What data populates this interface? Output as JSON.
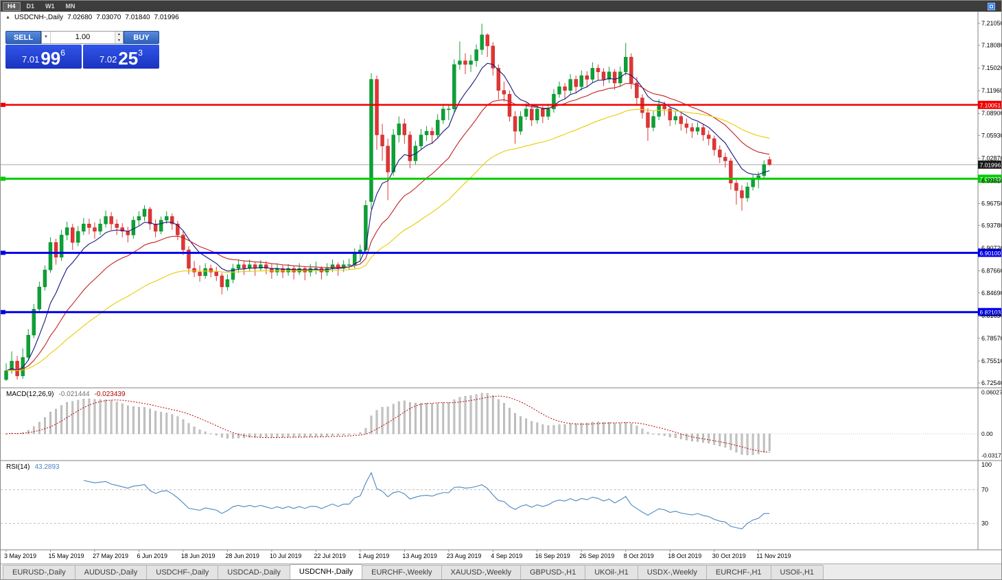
{
  "toolbar": {
    "timeframes": [
      {
        "label": "H4",
        "active": true
      },
      {
        "label": "D1",
        "active": false
      },
      {
        "label": "W1",
        "active": false
      },
      {
        "label": "MN",
        "active": false
      }
    ]
  },
  "icons": {
    "collapse": "▲",
    "dropdown": "▼",
    "up": "▲",
    "down": "▼"
  },
  "chart_header": {
    "symbol": "USDCNH-,Daily",
    "open": "7.02680",
    "high": "7.03070",
    "low": "7.01840",
    "close": "7.01996"
  },
  "trade_panel": {
    "sell_label": "SELL",
    "buy_label": "BUY",
    "volume": "1.00",
    "sell_price": {
      "prefix": "7.01",
      "big": "99",
      "sup": "6"
    },
    "buy_price": {
      "prefix": "7.02",
      "big": "25",
      "sup": "3"
    }
  },
  "indicators": {
    "macd_label": "MACD(12,26,9)",
    "macd_value": "-0.021444",
    "macd_signal": "-0.023439",
    "rsi_label": "RSI(14)",
    "rsi_value": "43.2893"
  },
  "price_scale": {
    "labels": [
      "7.21050",
      "7.18080",
      "7.15020",
      "7.11960",
      "7.08900",
      "7.05930",
      "7.02870",
      "6.99810",
      "6.96750",
      "6.93780",
      "6.90720",
      "6.87660",
      "6.84690",
      "6.81630",
      "6.78570",
      "6.75510",
      "6.72540"
    ],
    "current_price": "7.01996",
    "current_tag_color": "#1a1a1a"
  },
  "macd_scale": [
    "0.060273",
    "0.00",
    "-0.031723"
  ],
  "rsi_scale": [
    "100",
    "70",
    "30"
  ],
  "hlines": [
    {
      "price": "7.10051",
      "value": 7.10051,
      "color": "#f00000",
      "width": 2.5
    },
    {
      "price": "7.00089",
      "value": 7.00089,
      "color": "#00ce00",
      "width": 3
    },
    {
      "price": "6.90100",
      "value": 6.901,
      "color": "#0000e6",
      "width": 3
    },
    {
      "price": "6.82103",
      "value": 6.82103,
      "color": "#0000e6",
      "width": 3
    }
  ],
  "tabs": [
    {
      "label": "EURUSD-,Daily",
      "active": false
    },
    {
      "label": "AUDUSD-,Daily",
      "active": false
    },
    {
      "label": "USDCHF-,Daily",
      "active": false
    },
    {
      "label": "USDCAD-,Daily",
      "active": false
    },
    {
      "label": "USDCNH-,Daily",
      "active": true
    },
    {
      "label": "EURCHF-,Weekly",
      "active": false
    },
    {
      "label": "XAUUSD-,Weekly",
      "active": false
    },
    {
      "label": "GBPUSD-,H1",
      "active": false
    },
    {
      "label": "UKOil-,H1",
      "active": false
    },
    {
      "label": "USDX-,Weekly",
      "active": false
    },
    {
      "label": "EURCHF-,H1",
      "active": false
    },
    {
      "label": "USOil-,H1",
      "active": false
    }
  ],
  "chart_data": {
    "type": "candlestick",
    "symbol": "USDCNH",
    "timeframe": "Daily",
    "title": "USDCNH-,Daily",
    "ylim": [
      6.7254,
      7.2105
    ],
    "up_color": "#0ca135",
    "down_color": "#e03535",
    "up_stroke": "#007a26",
    "down_stroke": "#b02020",
    "current_line_color": "#a8a8a8",
    "x_labels": [
      "3 May 2019",
      "15 May 2019",
      "27 May 2019",
      "6 Jun 2019",
      "18 Jun 2019",
      "28 Jun 2019",
      "10 Jul 2019",
      "22 Jul 2019",
      "1 Aug 2019",
      "13 Aug 2019",
      "23 Aug 2019",
      "4 Sep 2019",
      "16 Sep 2019",
      "26 Sep 2019",
      "8 Oct 2019",
      "18 Oct 2019",
      "30 Oct 2019",
      "11 Nov 2019"
    ],
    "x_label_indices": [
      0,
      8,
      16,
      24,
      32,
      40,
      48,
      56,
      64,
      72,
      80,
      88,
      96,
      104,
      112,
      120,
      128,
      136
    ],
    "overlays": [
      {
        "name": "ma-fast-line",
        "period": 8,
        "color": "#16167f"
      },
      {
        "name": "ma-mid-line",
        "period": 20,
        "color": "#c41e1e"
      },
      {
        "name": "ma-slow-line",
        "period": 45,
        "color": "#e8cc00"
      }
    ],
    "macd": {
      "fast": 12,
      "slow": 26,
      "signal": 9,
      "range": [
        -0.035,
        0.065
      ],
      "bar_color": "#c4c4c4",
      "bar_stroke": "#9a9a9a",
      "signal_color": "#c00000"
    },
    "rsi": {
      "period": 14,
      "levels": [
        70,
        30
      ],
      "range": [
        0,
        100
      ],
      "color": "#4a86c0",
      "level_color": "#b8b8b8"
    },
    "candles": [
      [
        6.73,
        6.752,
        6.728,
        6.742
      ],
      [
        6.742,
        6.768,
        6.738,
        6.755
      ],
      [
        6.755,
        6.762,
        6.73,
        6.735
      ],
      [
        6.735,
        6.772,
        6.731,
        6.76
      ],
      [
        6.76,
        6.798,
        6.756,
        6.79
      ],
      [
        6.79,
        6.832,
        6.786,
        6.825
      ],
      [
        6.825,
        6.862,
        6.82,
        6.855
      ],
      [
        6.855,
        6.884,
        6.85,
        6.878
      ],
      [
        6.878,
        6.922,
        6.874,
        6.915
      ],
      [
        6.915,
        6.92,
        6.885,
        6.895
      ],
      [
        6.895,
        6.932,
        6.89,
        6.925
      ],
      [
        6.925,
        6.943,
        6.918,
        6.935
      ],
      [
        6.935,
        6.94,
        6.905,
        6.915
      ],
      [
        6.915,
        6.937,
        6.91,
        6.93
      ],
      [
        6.93,
        6.948,
        6.925,
        6.94
      ],
      [
        6.94,
        6.947,
        6.926,
        6.935
      ],
      [
        6.935,
        6.942,
        6.92,
        6.93
      ],
      [
        6.93,
        6.947,
        6.925,
        6.94
      ],
      [
        6.94,
        6.958,
        6.935,
        6.95
      ],
      [
        6.95,
        6.956,
        6.932,
        6.94
      ],
      [
        6.94,
        6.946,
        6.925,
        6.935
      ],
      [
        6.935,
        6.941,
        6.922,
        6.93
      ],
      [
        6.93,
        6.936,
        6.915,
        6.925
      ],
      [
        6.925,
        6.95,
        6.92,
        6.945
      ],
      [
        6.945,
        6.957,
        6.938,
        6.95
      ],
      [
        6.95,
        6.965,
        6.944,
        6.96
      ],
      [
        6.96,
        6.963,
        6.932,
        6.94
      ],
      [
        6.94,
        6.946,
        6.922,
        6.93
      ],
      [
        6.93,
        6.95,
        6.926,
        6.945
      ],
      [
        6.945,
        6.957,
        6.94,
        6.95
      ],
      [
        6.95,
        6.954,
        6.932,
        6.94
      ],
      [
        6.94,
        6.944,
        6.918,
        6.925
      ],
      [
        6.925,
        6.93,
        6.898,
        6.905
      ],
      [
        6.905,
        6.91,
        6.872,
        6.88
      ],
      [
        6.88,
        6.89,
        6.868,
        6.875
      ],
      [
        6.875,
        6.884,
        6.862,
        6.87
      ],
      [
        6.87,
        6.887,
        6.866,
        6.88
      ],
      [
        6.88,
        6.885,
        6.868,
        6.875
      ],
      [
        6.875,
        6.882,
        6.863,
        6.87
      ],
      [
        6.87,
        6.874,
        6.845,
        6.855
      ],
      [
        6.855,
        6.872,
        6.85,
        6.865
      ],
      [
        6.865,
        6.886,
        6.86,
        6.88
      ],
      [
        6.88,
        6.892,
        6.874,
        6.885
      ],
      [
        6.885,
        6.89,
        6.871,
        6.88
      ],
      [
        6.88,
        6.892,
        6.876,
        6.885
      ],
      [
        6.885,
        6.889,
        6.87,
        6.88
      ],
      [
        6.88,
        6.891,
        6.876,
        6.885
      ],
      [
        6.885,
        6.89,
        6.872,
        6.88
      ],
      [
        6.88,
        6.886,
        6.866,
        6.875
      ],
      [
        6.875,
        6.887,
        6.87,
        6.88
      ],
      [
        6.88,
        6.885,
        6.867,
        6.875
      ],
      [
        6.875,
        6.886,
        6.87,
        6.88
      ],
      [
        6.88,
        6.884,
        6.865,
        6.875
      ],
      [
        6.875,
        6.887,
        6.871,
        6.88
      ],
      [
        6.88,
        6.883,
        6.864,
        6.875
      ],
      [
        6.875,
        6.886,
        6.869,
        6.88
      ],
      [
        6.88,
        6.889,
        6.872,
        6.88
      ],
      [
        6.88,
        6.883,
        6.865,
        6.875
      ],
      [
        6.875,
        6.887,
        6.87,
        6.88
      ],
      [
        6.88,
        6.892,
        6.875,
        6.885
      ],
      [
        6.885,
        6.888,
        6.87,
        6.88
      ],
      [
        6.88,
        6.891,
        6.875,
        6.885
      ],
      [
        6.885,
        6.893,
        6.878,
        6.885
      ],
      [
        6.885,
        6.907,
        6.88,
        6.9
      ],
      [
        6.9,
        6.912,
        6.888,
        6.905
      ],
      [
        6.905,
        6.972,
        6.9,
        6.965
      ],
      [
        6.97,
        7.143,
        6.96,
        7.135
      ],
      [
        7.135,
        7.14,
        7.04,
        7.06
      ],
      [
        7.06,
        7.075,
        7.025,
        7.045
      ],
      [
        7.045,
        7.055,
        6.972,
        7.01
      ],
      [
        7.01,
        7.068,
        7.005,
        7.06
      ],
      [
        7.06,
        7.085,
        7.05,
        7.075
      ],
      [
        7.075,
        7.082,
        7.048,
        7.06
      ],
      [
        7.06,
        7.065,
        7.015,
        7.025
      ],
      [
        7.025,
        7.052,
        7.02,
        7.045
      ],
      [
        7.045,
        7.068,
        7.04,
        7.06
      ],
      [
        7.06,
        7.072,
        7.052,
        7.065
      ],
      [
        7.065,
        7.07,
        7.048,
        7.06
      ],
      [
        7.06,
        7.088,
        7.055,
        7.08
      ],
      [
        7.08,
        7.102,
        7.075,
        7.095
      ],
      [
        7.095,
        7.101,
        7.08,
        7.095
      ],
      [
        7.095,
        7.162,
        7.09,
        7.155
      ],
      [
        7.155,
        7.186,
        7.148,
        7.16
      ],
      [
        7.16,
        7.17,
        7.142,
        7.155
      ],
      [
        7.155,
        7.168,
        7.145,
        7.16
      ],
      [
        7.16,
        7.182,
        7.152,
        7.175
      ],
      [
        7.175,
        7.21,
        7.168,
        7.195
      ],
      [
        7.195,
        7.197,
        7.165,
        7.18
      ],
      [
        7.18,
        7.185,
        7.14,
        7.15
      ],
      [
        7.15,
        7.155,
        7.108,
        7.12
      ],
      [
        7.12,
        7.132,
        7.105,
        7.115
      ],
      [
        7.115,
        7.12,
        7.078,
        7.085
      ],
      [
        7.085,
        7.092,
        7.048,
        7.065
      ],
      [
        7.065,
        7.092,
        7.06,
        7.085
      ],
      [
        7.085,
        7.103,
        7.08,
        7.095
      ],
      [
        7.095,
        7.1,
        7.072,
        7.08
      ],
      [
        7.08,
        7.1,
        7.075,
        7.095
      ],
      [
        7.095,
        7.099,
        7.076,
        7.085
      ],
      [
        7.085,
        7.102,
        7.08,
        7.095
      ],
      [
        7.095,
        7.122,
        7.09,
        7.115
      ],
      [
        7.115,
        7.132,
        7.11,
        7.125
      ],
      [
        7.125,
        7.13,
        7.108,
        7.12
      ],
      [
        7.12,
        7.142,
        7.115,
        7.135
      ],
      [
        7.135,
        7.14,
        7.116,
        7.125
      ],
      [
        7.125,
        7.147,
        7.12,
        7.14
      ],
      [
        7.14,
        7.146,
        7.124,
        7.135
      ],
      [
        7.135,
        7.158,
        7.13,
        7.15
      ],
      [
        7.15,
        7.155,
        7.134,
        7.145
      ],
      [
        7.145,
        7.15,
        7.126,
        7.135
      ],
      [
        7.135,
        7.152,
        7.13,
        7.145
      ],
      [
        7.145,
        7.149,
        7.121,
        7.13
      ],
      [
        7.13,
        7.152,
        7.125,
        7.145
      ],
      [
        7.145,
        7.184,
        7.14,
        7.165
      ],
      [
        7.165,
        7.17,
        7.122,
        7.13
      ],
      [
        7.13,
        7.138,
        7.1,
        7.11
      ],
      [
        7.11,
        7.115,
        7.082,
        7.09
      ],
      [
        7.09,
        7.096,
        7.052,
        7.07
      ],
      [
        7.07,
        7.092,
        7.065,
        7.085
      ],
      [
        7.085,
        7.108,
        7.08,
        7.1
      ],
      [
        7.1,
        7.105,
        7.086,
        7.095
      ],
      [
        7.095,
        7.099,
        7.072,
        7.08
      ],
      [
        7.08,
        7.092,
        7.074,
        7.085
      ],
      [
        7.085,
        7.089,
        7.066,
        7.075
      ],
      [
        7.075,
        7.082,
        7.062,
        7.07
      ],
      [
        7.07,
        7.076,
        7.056,
        7.065
      ],
      [
        7.065,
        7.077,
        7.06,
        7.07
      ],
      [
        7.07,
        7.074,
        7.052,
        7.06
      ],
      [
        7.06,
        7.066,
        7.046,
        7.055
      ],
      [
        7.055,
        7.059,
        7.032,
        7.04
      ],
      [
        7.04,
        7.046,
        7.022,
        7.03
      ],
      [
        7.03,
        7.036,
        7.016,
        7.025
      ],
      [
        7.025,
        7.029,
        6.986,
        6.995
      ],
      [
        6.995,
        7.0,
        6.966,
        6.985
      ],
      [
        6.985,
        6.992,
        6.958,
        6.975
      ],
      [
        6.975,
        6.996,
        6.97,
        6.99
      ],
      [
        6.99,
        7.006,
        6.985,
        7.0
      ],
      [
        7.0,
        7.01,
        6.988,
        7.005
      ],
      [
        7.005,
        7.026,
        7.0,
        7.02
      ],
      [
        7.0268,
        7.0307,
        7.0184,
        7.02
      ]
    ]
  }
}
